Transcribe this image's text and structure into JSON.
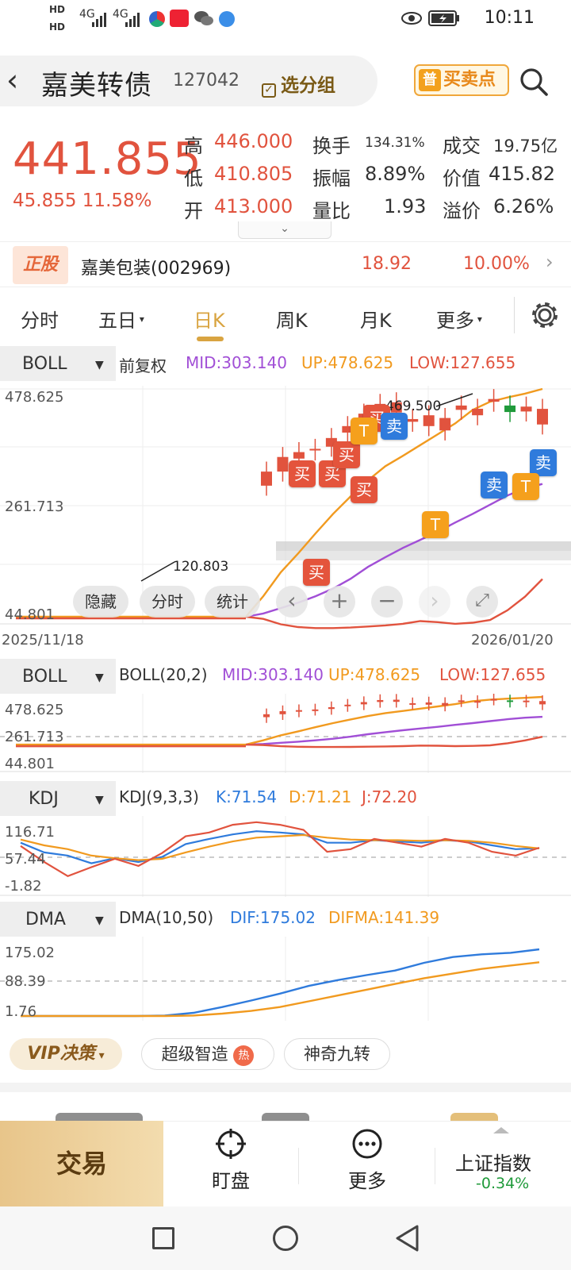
{
  "status_bar": {
    "hd1": "HD",
    "hd2": "HD",
    "net1": "4G",
    "net2": "4G",
    "time": "10:11"
  },
  "header": {
    "title": "嘉美转债",
    "code": "127042",
    "group_label": "选分组",
    "buy_sell_prefix": "普",
    "buy_sell_label": "买卖点"
  },
  "quote": {
    "price": "441.855",
    "change": "45.855",
    "change_pct": "11.58%",
    "rows": [
      {
        "l1": "高",
        "v1": "446.000",
        "l2": "换手",
        "v2": "134.31%",
        "l3": "成交",
        "v3": "19.75亿"
      },
      {
        "l1": "低",
        "v1": "410.805",
        "l2": "振幅",
        "v2": "8.89%",
        "l3": "价值",
        "v3": "415.82"
      },
      {
        "l1": "开",
        "v1": "413.000",
        "l2": "量比",
        "v2": "1.93",
        "l3": "溢价",
        "v3": "6.26%"
      }
    ],
    "expand_glyph": "⌄"
  },
  "stock": {
    "tag": "正股",
    "name": "嘉美包装(002969)",
    "price": "18.92",
    "pct": "10.00%",
    "arrow": "›"
  },
  "tabs": [
    {
      "label": "分时"
    },
    {
      "label": "五日"
    },
    {
      "label": "日K"
    },
    {
      "label": "周K"
    },
    {
      "label": "月K"
    },
    {
      "label": "更多"
    }
  ],
  "main_chart": {
    "indicator": "BOLL",
    "adjust": "前复权",
    "mid": "MID:303.140",
    "up": "UP:478.625",
    "low": "LOW:127.655",
    "y_top": "478.625",
    "y_mid": "261.713",
    "y_bot": "44.801",
    "x_start": "2025/11/18",
    "x_end": "2026/01/20",
    "high_mark": "469.500",
    "low_mark": "120.803",
    "controls": {
      "hide": "隐藏",
      "intraday": "分时",
      "stats": "统计",
      "left": "‹",
      "plus": "+",
      "minus": "−",
      "right": "›",
      "fullscreen": "⤢"
    },
    "signals": [
      {
        "label": "买",
        "type": "buy"
      },
      {
        "label": "买",
        "type": "buy"
      },
      {
        "label": "买",
        "type": "buy"
      },
      {
        "label": "买",
        "type": "buy"
      },
      {
        "label": "买",
        "type": "buy"
      },
      {
        "label": "买",
        "type": "buy"
      },
      {
        "label": "卖",
        "type": "sell"
      },
      {
        "label": "卖",
        "type": "sell"
      },
      {
        "label": "卖",
        "type": "sell"
      },
      {
        "label": "T",
        "type": "t"
      },
      {
        "label": "T",
        "type": "t"
      },
      {
        "label": "T",
        "type": "t"
      }
    ]
  },
  "boll_panel": {
    "name": "BOLL",
    "params": "BOLL(20,2)",
    "mid": "MID:303.140",
    "up": "UP:478.625",
    "low": "LOW:127.655",
    "y_top": "478.625",
    "y_mid": "261.713",
    "y_bot": "44.801"
  },
  "kdj_panel": {
    "name": "KDJ",
    "params": "KDJ(9,3,3)",
    "k": "K:71.54",
    "d": "D:71.21",
    "j": "J:72.20",
    "y_top": "116.71",
    "y_mid": "57.44",
    "y_bot": "-1.82"
  },
  "dma_panel": {
    "name": "DMA",
    "params": "DMA(10,50)",
    "dif": "DIF:175.02",
    "difma": "DIFMA:141.39",
    "y_top": "175.02",
    "y_mid": "88.39",
    "y_bot": "1.76"
  },
  "features": {
    "vip": "VIP决策",
    "super": "超级智造",
    "hot": "热",
    "nine": "神奇九转"
  },
  "bottom_nav": {
    "trade": "交易",
    "watch": "盯盘",
    "more": "更多",
    "index_name": "上证指数",
    "index_val": "-0.34%"
  },
  "colors": {
    "red": "#e1533e",
    "green": "#1f9a3a",
    "orange": "#f19a1f",
    "purple": "#a14fd6",
    "blue": "#2f7bdc",
    "gold": "#d9a441"
  },
  "chart_data": [
    {
      "type": "line",
      "title": "BOLL",
      "y_range": [
        44.801,
        478.625
      ],
      "candles": {
        "open": [
          300,
          326,
          350,
          365,
          372,
          398,
          413,
          434,
          435,
          418,
          410,
          402,
          440,
          430,
          455,
          448,
          437,
          413
        ],
        "close": [
          326,
          353,
          362,
          368,
          388,
          410,
          433,
          451,
          454,
          423,
          430,
          425,
          448,
          442,
          460,
          436,
          446,
          441.855
        ]
      },
      "series": [
        {
          "name": "MID",
          "values": [
            58,
            64,
            74,
            84,
            96,
            110,
            128,
            150,
            168,
            185,
            200,
            215,
            232,
            248,
            265,
            282,
            295,
            303.14
          ]
        },
        {
          "name": "UP",
          "values": [
            58,
            96,
            140,
            175,
            212,
            248,
            280,
            310,
            336,
            355,
            375,
            395,
            415,
            440,
            455,
            463,
            470,
            478.625
          ]
        },
        {
          "name": "LOW",
          "values": [
            58,
            54,
            44,
            39,
            37,
            37,
            38,
            40,
            42,
            45,
            50,
            48,
            45,
            47,
            52,
            70,
            95,
            127.655
          ]
        }
      ]
    },
    {
      "type": "line",
      "title": "KDJ(9,3,3)",
      "y_range": [
        -1.82,
        116.71
      ],
      "series": [
        {
          "name": "K",
          "values": [
            80,
            65,
            60,
            48,
            56,
            50,
            58,
            78,
            86,
            93,
            98,
            96,
            93,
            80,
            80,
            84,
            82,
            80,
            84,
            82,
            76,
            70,
            71.54
          ]
        },
        {
          "name": "D",
          "values": [
            85,
            76,
            70,
            60,
            56,
            53,
            55,
            65,
            74,
            82,
            88,
            90,
            92,
            88,
            85,
            84,
            84,
            83,
            84,
            83,
            80,
            75,
            71.21
          ]
        },
        {
          "name": "J",
          "values": [
            75,
            50,
            28,
            42,
            55,
            44,
            64,
            90,
            96,
            108,
            112,
            108,
            100,
            66,
            70,
            86,
            80,
            74,
            86,
            80,
            66,
            60,
            72.2
          ]
        }
      ]
    },
    {
      "type": "line",
      "title": "DMA(10,50)",
      "y_range": [
        1.76,
        175.02
      ],
      "series": [
        {
          "name": "DIF",
          "values": [
            1.76,
            1.76,
            1.76,
            1.76,
            1.76,
            3,
            10,
            25,
            42,
            60,
            80,
            95,
            108,
            120,
            140,
            155,
            162,
            166,
            175.02
          ]
        },
        {
          "name": "DIFMA",
          "values": [
            1.76,
            1.76,
            1.76,
            1.76,
            1.76,
            1.76,
            3,
            8,
            15,
            25,
            40,
            55,
            70,
            85,
            100,
            112,
            124,
            133,
            141.39
          ]
        }
      ]
    }
  ]
}
